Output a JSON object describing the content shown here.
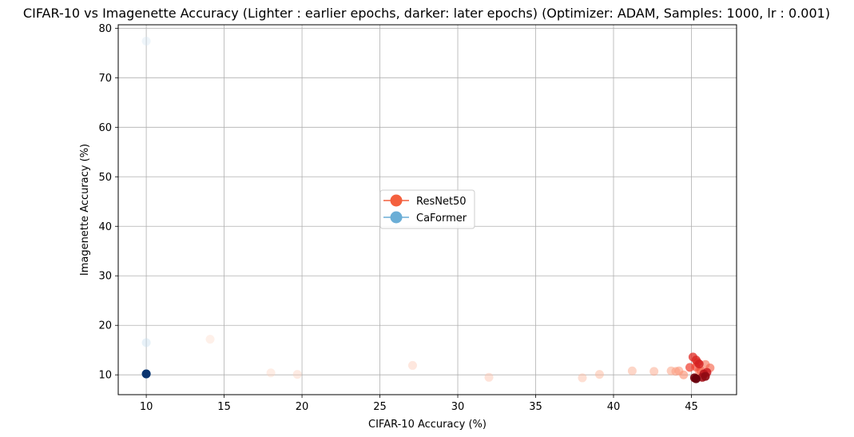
{
  "chart_data": {
    "type": "scatter",
    "title": "CIFAR-10 vs Imagenette Accuracy (Lighter : earlier epochs, darker: later epochs) (Optimizer: ADAM, Samples: 1000, lr : 0.001)",
    "xlabel": "CIFAR-10 Accuracy (%)",
    "ylabel": "Imagenette Accuracy (%)",
    "xlim": [
      8.2,
      47.9
    ],
    "ylim": [
      6.0,
      80.7
    ],
    "xticks": [
      10,
      15,
      20,
      25,
      30,
      35,
      40,
      45
    ],
    "yticks": [
      10,
      20,
      30,
      40,
      50,
      60,
      70,
      80
    ],
    "grid": true,
    "legend_position": "center",
    "color_note": "Lighter: earlier epochs, darker: later epochs",
    "series": [
      {
        "name": "ResNet50",
        "color": "#f4603e",
        "colormap": "Reds",
        "points": [
          {
            "x": 14.1,
            "y": 17.2,
            "epoch_shade": 0.05
          },
          {
            "x": 18.0,
            "y": 10.4,
            "epoch_shade": 0.08
          },
          {
            "x": 19.7,
            "y": 10.1,
            "epoch_shade": 0.1
          },
          {
            "x": 27.1,
            "y": 11.9,
            "epoch_shade": 0.13
          },
          {
            "x": 32.0,
            "y": 9.5,
            "epoch_shade": 0.16
          },
          {
            "x": 38.0,
            "y": 9.4,
            "epoch_shade": 0.2
          },
          {
            "x": 39.1,
            "y": 10.1,
            "epoch_shade": 0.23
          },
          {
            "x": 41.2,
            "y": 10.8,
            "epoch_shade": 0.26
          },
          {
            "x": 42.6,
            "y": 10.7,
            "epoch_shade": 0.29
          },
          {
            "x": 43.7,
            "y": 10.8,
            "epoch_shade": 0.32
          },
          {
            "x": 44.0,
            "y": 10.7,
            "epoch_shade": 0.35
          },
          {
            "x": 44.2,
            "y": 10.8,
            "epoch_shade": 0.38
          },
          {
            "x": 44.5,
            "y": 10.0,
            "epoch_shade": 0.41
          },
          {
            "x": 45.5,
            "y": 10.8,
            "epoch_shade": 0.44
          },
          {
            "x": 45.9,
            "y": 12.1,
            "epoch_shade": 0.47
          },
          {
            "x": 46.2,
            "y": 11.4,
            "epoch_shade": 0.5
          },
          {
            "x": 45.6,
            "y": 10.8,
            "epoch_shade": 0.53
          },
          {
            "x": 45.3,
            "y": 11.6,
            "epoch_shade": 0.56
          },
          {
            "x": 44.9,
            "y": 11.5,
            "epoch_shade": 0.6
          },
          {
            "x": 45.4,
            "y": 12.5,
            "epoch_shade": 0.64
          },
          {
            "x": 45.1,
            "y": 13.6,
            "epoch_shade": 0.68
          },
          {
            "x": 45.3,
            "y": 13.0,
            "epoch_shade": 0.72
          },
          {
            "x": 45.5,
            "y": 12.2,
            "epoch_shade": 0.76
          },
          {
            "x": 46.0,
            "y": 10.5,
            "epoch_shade": 0.8
          },
          {
            "x": 45.8,
            "y": 10.2,
            "epoch_shade": 0.84
          },
          {
            "x": 45.7,
            "y": 9.5,
            "epoch_shade": 0.88
          },
          {
            "x": 45.9,
            "y": 9.7,
            "epoch_shade": 0.92
          },
          {
            "x": 45.2,
            "y": 9.4,
            "epoch_shade": 0.96
          },
          {
            "x": 45.3,
            "y": 9.2,
            "epoch_shade": 1.0
          }
        ]
      },
      {
        "name": "CaFormer",
        "color": "#6baed6",
        "colormap": "Blues",
        "points": [
          {
            "x": 10.0,
            "y": 77.4,
            "epoch_shade": 0.05
          },
          {
            "x": 10.0,
            "y": 16.5,
            "epoch_shade": 0.1
          },
          {
            "x": 10.0,
            "y": 10.2,
            "epoch_shade": 0.4
          },
          {
            "x": 10.0,
            "y": 10.2,
            "epoch_shade": 0.7
          },
          {
            "x": 10.0,
            "y": 10.2,
            "epoch_shade": 1.0
          }
        ]
      }
    ]
  }
}
